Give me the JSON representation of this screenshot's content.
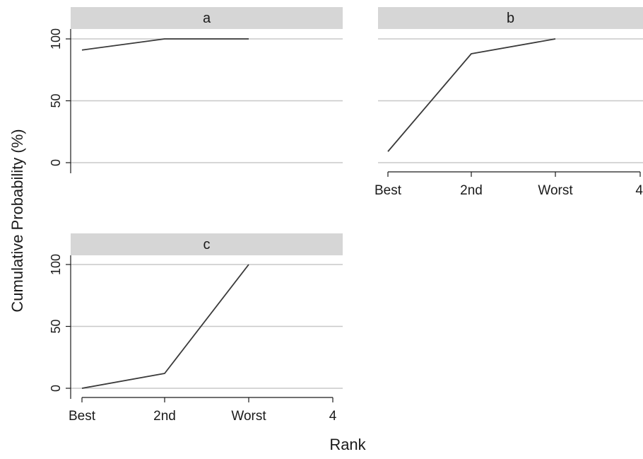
{
  "figure": {
    "xlabel": "Rank",
    "ylabel": "Cumulative Probability (%)"
  },
  "colors": {
    "line": "#3a3a3a",
    "panel_header": "#d6d6d6",
    "gridline": "#c8c8c8",
    "axis": "#1a1a1a"
  },
  "chart_data": [
    {
      "type": "line",
      "panel": "a",
      "title": "a",
      "x": [
        "Best",
        "2nd",
        "Worst"
      ],
      "values": [
        91,
        100,
        100
      ],
      "ylim": [
        0,
        100
      ],
      "yticks": [
        0,
        50,
        100
      ],
      "xticks": [],
      "grid": true
    },
    {
      "type": "line",
      "panel": "b",
      "title": "b",
      "x": [
        "Best",
        "2nd",
        "Worst"
      ],
      "values": [
        9,
        88,
        100
      ],
      "ylim": [
        0,
        100
      ],
      "yticks": [],
      "xticks": [
        "Best",
        "2nd",
        "Worst",
        "4"
      ],
      "grid": true
    },
    {
      "type": "line",
      "panel": "c",
      "title": "c",
      "x": [
        "Best",
        "2nd",
        "Worst"
      ],
      "values": [
        0,
        12,
        100
      ],
      "ylim": [
        0,
        100
      ],
      "yticks": [
        0,
        50,
        100
      ],
      "xticks": [
        "Best",
        "2nd",
        "Worst",
        "4"
      ],
      "grid": true
    }
  ]
}
